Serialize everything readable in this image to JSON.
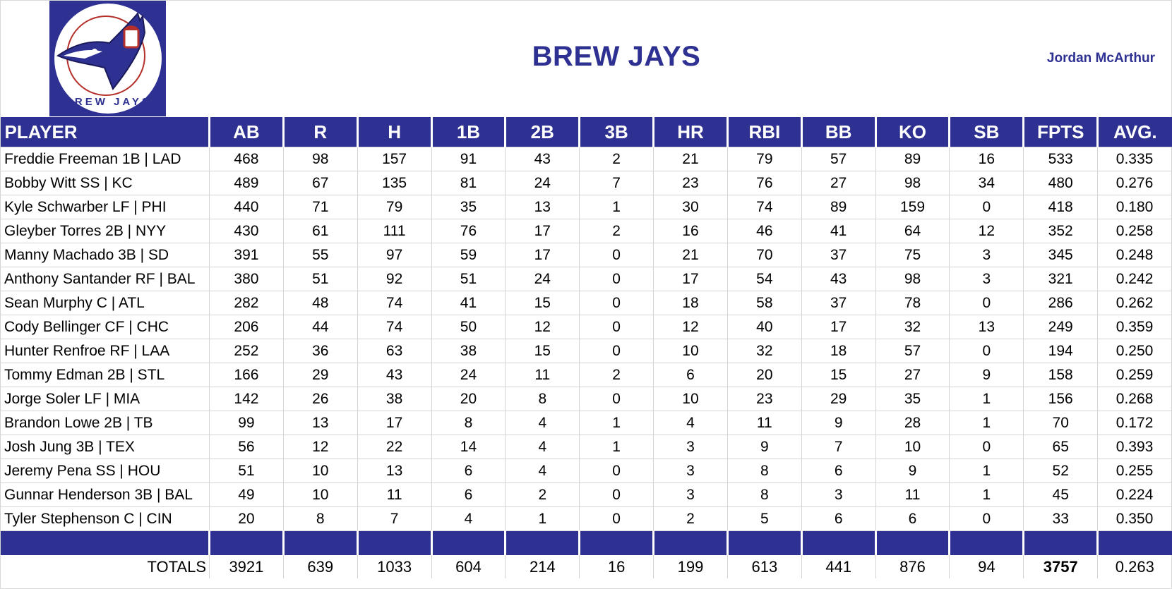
{
  "header": {
    "title": "BREW JAYS",
    "owner": "Jordan McArthur",
    "logo_text": "BREW JAYS"
  },
  "colors": {
    "brand": "#2e3192",
    "accent_red": "#b5302a"
  },
  "table": {
    "columns": [
      "PLAYER",
      "AB",
      "R",
      "H",
      "1B",
      "2B",
      "3B",
      "HR",
      "RBI",
      "BB",
      "KO",
      "SB",
      "FPTS",
      "AVG."
    ],
    "rows": [
      [
        "Freddie Freeman 1B | LAD",
        "468",
        "98",
        "157",
        "91",
        "43",
        "2",
        "21",
        "79",
        "57",
        "89",
        "16",
        "533",
        "0.335"
      ],
      [
        "Bobby Witt SS | KC",
        "489",
        "67",
        "135",
        "81",
        "24",
        "7",
        "23",
        "76",
        "27",
        "98",
        "34",
        "480",
        "0.276"
      ],
      [
        "Kyle Schwarber LF | PHI",
        "440",
        "71",
        "79",
        "35",
        "13",
        "1",
        "30",
        "74",
        "89",
        "159",
        "0",
        "418",
        "0.180"
      ],
      [
        "Gleyber Torres 2B | NYY",
        "430",
        "61",
        "111",
        "76",
        "17",
        "2",
        "16",
        "46",
        "41",
        "64",
        "12",
        "352",
        "0.258"
      ],
      [
        "Manny Machado 3B | SD",
        "391",
        "55",
        "97",
        "59",
        "17",
        "0",
        "21",
        "70",
        "37",
        "75",
        "3",
        "345",
        "0.248"
      ],
      [
        "Anthony Santander RF | BAL",
        "380",
        "51",
        "92",
        "51",
        "24",
        "0",
        "17",
        "54",
        "43",
        "98",
        "3",
        "321",
        "0.242"
      ],
      [
        "Sean Murphy C | ATL",
        "282",
        "48",
        "74",
        "41",
        "15",
        "0",
        "18",
        "58",
        "37",
        "78",
        "0",
        "286",
        "0.262"
      ],
      [
        "Cody Bellinger CF | CHC",
        "206",
        "44",
        "74",
        "50",
        "12",
        "0",
        "12",
        "40",
        "17",
        "32",
        "13",
        "249",
        "0.359"
      ],
      [
        "Hunter Renfroe RF | LAA",
        "252",
        "36",
        "63",
        "38",
        "15",
        "0",
        "10",
        "32",
        "18",
        "57",
        "0",
        "194",
        "0.250"
      ],
      [
        "Tommy Edman 2B | STL",
        "166",
        "29",
        "43",
        "24",
        "11",
        "2",
        "6",
        "20",
        "15",
        "27",
        "9",
        "158",
        "0.259"
      ],
      [
        "Jorge Soler LF | MIA",
        "142",
        "26",
        "38",
        "20",
        "8",
        "0",
        "10",
        "23",
        "29",
        "35",
        "1",
        "156",
        "0.268"
      ],
      [
        "Brandon Lowe 2B | TB",
        "99",
        "13",
        "17",
        "8",
        "4",
        "1",
        "4",
        "11",
        "9",
        "28",
        "1",
        "70",
        "0.172"
      ],
      [
        "Josh Jung 3B | TEX",
        "56",
        "12",
        "22",
        "14",
        "4",
        "1",
        "3",
        "9",
        "7",
        "10",
        "0",
        "65",
        "0.393"
      ],
      [
        "Jeremy Pena SS | HOU",
        "51",
        "10",
        "13",
        "6",
        "4",
        "0",
        "3",
        "8",
        "6",
        "9",
        "1",
        "52",
        "0.255"
      ],
      [
        "Gunnar Henderson 3B | BAL",
        "49",
        "10",
        "11",
        "6",
        "2",
        "0",
        "3",
        "8",
        "3",
        "11",
        "1",
        "45",
        "0.224"
      ],
      [
        "Tyler Stephenson C | CIN",
        "20",
        "8",
        "7",
        "4",
        "1",
        "0",
        "2",
        "5",
        "6",
        "6",
        "0",
        "33",
        "0.350"
      ]
    ],
    "totals": [
      "TOTALS",
      "3921",
      "639",
      "1033",
      "604",
      "214",
      "16",
      "199",
      "613",
      "441",
      "876",
      "94",
      "3757",
      "0.263"
    ]
  }
}
